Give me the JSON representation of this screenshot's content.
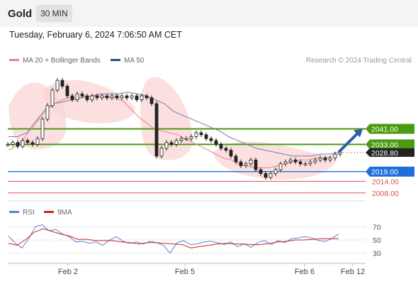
{
  "header": {
    "title": "Gold",
    "timeframe": "30 MIN"
  },
  "datetime": "Tuesday, February 6, 2024 7:06:50 AM CET",
  "legend": {
    "bb": {
      "label": "MA 20 + Bollinger Bands",
      "color": "#f08080"
    },
    "ma50": {
      "label": "MA 50",
      "color": "#2b4c8c"
    },
    "credit": "Research © 2024 Trading Central"
  },
  "rsi_legend": {
    "rsi": {
      "label": "RSI",
      "color": "#5b7fd6"
    },
    "ma9": {
      "label": "9MA",
      "color": "#d42020"
    }
  },
  "price_levels": [
    {
      "label": "2041.00",
      "price": 2041.0,
      "kind": "resistance",
      "color": "#4a9a12"
    },
    {
      "label": "2033.00",
      "price": 2033.0,
      "kind": "resistance",
      "color": "#4a9a12"
    },
    {
      "label": "2028.80",
      "price": 2028.8,
      "kind": "last",
      "color": "#222222"
    },
    {
      "label": "2019.00",
      "price": 2019.0,
      "kind": "pivot",
      "color": "#1f6fd8"
    },
    {
      "label": "2014.00",
      "price": 2014.0,
      "kind": "support",
      "color": "#e05050"
    },
    {
      "label": "2008.00",
      "price": 2008.0,
      "kind": "support",
      "color": "#e05050"
    }
  ],
  "rsi_levels": [
    "70",
    "50",
    "30"
  ],
  "x_axis": [
    "Feb 2",
    "Feb 5",
    "Feb 6",
    "Feb 12"
  ],
  "chart_data": [
    {
      "type": "candlestick",
      "title": "Gold",
      "timeframe": "30 MIN",
      "series": [
        {
          "name": "Gold",
          "close": [
            2033,
            2034,
            2032,
            2035,
            2034,
            2033,
            2036,
            2046,
            2053,
            2061,
            2066,
            2063,
            2058,
            2056,
            2059,
            2058,
            2056,
            2058,
            2057,
            2058,
            2057,
            2058,
            2057,
            2058,
            2057,
            2058,
            2056,
            2058,
            2057,
            2054,
            2027,
            2031,
            2034,
            2033,
            2035,
            2036,
            2036,
            2037,
            2039,
            2038,
            2036,
            2035,
            2033,
            2031,
            2030,
            2027,
            2024,
            2022,
            2023,
            2025,
            2020,
            2018,
            2016,
            2018,
            2020,
            2023,
            2024,
            2025,
            2024,
            2023,
            2023,
            2024,
            2025,
            2026,
            2025,
            2026,
            2028,
            2029
          ]
        },
        {
          "name": "MA 20",
          "values": [
            2030,
            2032,
            2036,
            2041,
            2046,
            2051,
            2054,
            2056,
            2057,
            2057,
            2058,
            2058,
            2058,
            2057,
            2057,
            2055,
            2051,
            2047,
            2044,
            2041,
            2040,
            2039,
            2038,
            2036,
            2034,
            2032,
            2030,
            2028,
            2026,
            2025,
            2023,
            2022,
            2021,
            2021,
            2021,
            2022,
            2023,
            2024,
            2025,
            2025,
            2026,
            2026,
            2027,
            2028
          ]
        },
        {
          "name": "MA 50",
          "values": [
            2037,
            2037,
            2039,
            2045,
            2051,
            2054,
            2055,
            2056,
            2057,
            2058,
            2059,
            2059,
            2059,
            2060,
            2059,
            2058,
            2056,
            2054,
            2050,
            2048,
            2046,
            2044,
            2042,
            2040,
            2037,
            2035,
            2033,
            2031,
            2030,
            2029,
            2028,
            2027,
            2027,
            2027,
            2028,
            2028,
            2029
          ]
        }
      ],
      "ylim": [
        2005,
        2073
      ]
    },
    {
      "type": "line",
      "title": "RSI",
      "series": [
        {
          "name": "RSI",
          "values": [
            56,
            45,
            38,
            52,
            70,
            73,
            64,
            66,
            59,
            55,
            47,
            48,
            45,
            47,
            42,
            50,
            55,
            48,
            45,
            47,
            44,
            48,
            46,
            42,
            30,
            46,
            49,
            43,
            44,
            47,
            48,
            46,
            43,
            47,
            40,
            44,
            39,
            46,
            49,
            43,
            49,
            46,
            52,
            53,
            55,
            53,
            49,
            48,
            52,
            59
          ]
        },
        {
          "name": "9MA",
          "values": [
            45,
            42,
            51,
            62,
            67,
            63,
            59,
            56,
            51,
            51,
            49,
            49,
            49,
            47,
            46,
            44,
            46,
            46,
            45,
            44,
            43,
            38,
            40,
            42,
            44,
            45,
            44,
            44,
            43,
            43,
            45,
            47,
            48,
            50,
            50,
            51,
            52,
            52,
            52
          ]
        }
      ],
      "levels": [
        70,
        50,
        30
      ]
    }
  ]
}
